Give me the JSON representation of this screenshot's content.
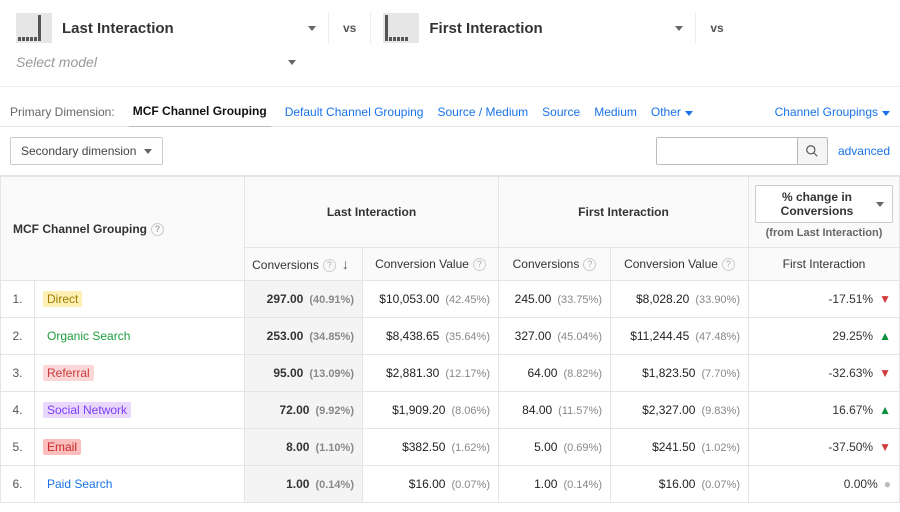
{
  "compare": {
    "model_a": "Last Interaction",
    "model_b": "First Interaction",
    "vs": "vs",
    "select_model_placeholder": "Select model"
  },
  "primary_dimension": {
    "label": "Primary Dimension:",
    "active": "MCF Channel Grouping",
    "links": [
      "Default Channel Grouping",
      "Source / Medium",
      "Source",
      "Medium",
      "Other",
      "Channel Groupings"
    ]
  },
  "controls": {
    "secondary_dimension": "Secondary dimension",
    "advanced": "advanced"
  },
  "table": {
    "dim_header": "MCF Channel Grouping",
    "group_a": "Last Interaction",
    "group_b": "First Interaction",
    "subheaders": {
      "conversions": "Conversions",
      "conv_value": "Conversion Value"
    },
    "metric_select": "% change in Conversions",
    "from_note": "(from Last Interaction)",
    "change_col_header": "First Interaction"
  },
  "channel_colors": {
    "Direct": {
      "bg": "#fcefb4",
      "fg": "#a07d00"
    },
    "Organic Search": {
      "bg": "transparent",
      "fg": "#1e9e3e"
    },
    "Referral": {
      "bg": "#fbd7d7",
      "fg": "#cc3b3b"
    },
    "Social Network": {
      "bg": "#e9d8fb",
      "fg": "#7b3ff2"
    },
    "Email": {
      "bg": "#fcbdbd",
      "fg": "#c62828"
    },
    "Paid Search": {
      "bg": "transparent",
      "fg": "#1a73e8"
    }
  },
  "rows": [
    {
      "idx": 1,
      "channel": "Direct",
      "a_conv": "297.00",
      "a_conv_pct": "(40.91%)",
      "a_val": "$10,053.00",
      "a_val_pct": "(42.45%)",
      "b_conv": "245.00",
      "b_conv_pct": "(33.75%)",
      "b_val": "$8,028.20",
      "b_val_pct": "(33.90%)",
      "delta": "-17.51%",
      "dir": "down"
    },
    {
      "idx": 2,
      "channel": "Organic Search",
      "a_conv": "253.00",
      "a_conv_pct": "(34.85%)",
      "a_val": "$8,438.65",
      "a_val_pct": "(35.64%)",
      "b_conv": "327.00",
      "b_conv_pct": "(45.04%)",
      "b_val": "$11,244.45",
      "b_val_pct": "(47.48%)",
      "delta": "29.25%",
      "dir": "up"
    },
    {
      "idx": 3,
      "channel": "Referral",
      "a_conv": "95.00",
      "a_conv_pct": "(13.09%)",
      "a_val": "$2,881.30",
      "a_val_pct": "(12.17%)",
      "b_conv": "64.00",
      "b_conv_pct": "(8.82%)",
      "b_val": "$1,823.50",
      "b_val_pct": "(7.70%)",
      "delta": "-32.63%",
      "dir": "down"
    },
    {
      "idx": 4,
      "channel": "Social Network",
      "a_conv": "72.00",
      "a_conv_pct": "(9.92%)",
      "a_val": "$1,909.20",
      "a_val_pct": "(8.06%)",
      "b_conv": "84.00",
      "b_conv_pct": "(11.57%)",
      "b_val": "$2,327.00",
      "b_val_pct": "(9.83%)",
      "delta": "16.67%",
      "dir": "up"
    },
    {
      "idx": 5,
      "channel": "Email",
      "a_conv": "8.00",
      "a_conv_pct": "(1.10%)",
      "a_val": "$382.50",
      "a_val_pct": "(1.62%)",
      "b_conv": "5.00",
      "b_conv_pct": "(0.69%)",
      "b_val": "$241.50",
      "b_val_pct": "(1.02%)",
      "delta": "-37.50%",
      "dir": "down"
    },
    {
      "idx": 6,
      "channel": "Paid Search",
      "a_conv": "1.00",
      "a_conv_pct": "(0.14%)",
      "a_val": "$16.00",
      "a_val_pct": "(0.07%)",
      "b_conv": "1.00",
      "b_conv_pct": "(0.14%)",
      "b_val": "$16.00",
      "b_val_pct": "(0.07%)",
      "delta": "0.00%",
      "dir": "flat"
    }
  ]
}
